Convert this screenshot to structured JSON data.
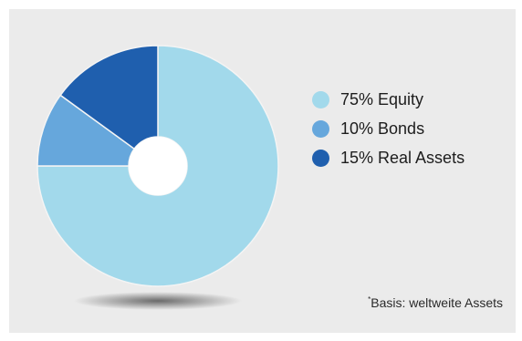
{
  "chart_data": {
    "type": "pie",
    "style": "donut",
    "start_angle_deg": 0,
    "direction": "clockwise",
    "categories": [
      "Equity",
      "Bonds",
      "Real Assets"
    ],
    "values": [
      75,
      10,
      15
    ],
    "colors": [
      "#a2d9eb",
      "#66a7dc",
      "#1f5fae"
    ],
    "legend": {
      "placement": "right",
      "entries": [
        "75% Equity",
        "10% Bonds",
        "15% Real Assets"
      ]
    },
    "footnote": {
      "marker": "*",
      "text": "Basis: weltweite Assets"
    }
  }
}
